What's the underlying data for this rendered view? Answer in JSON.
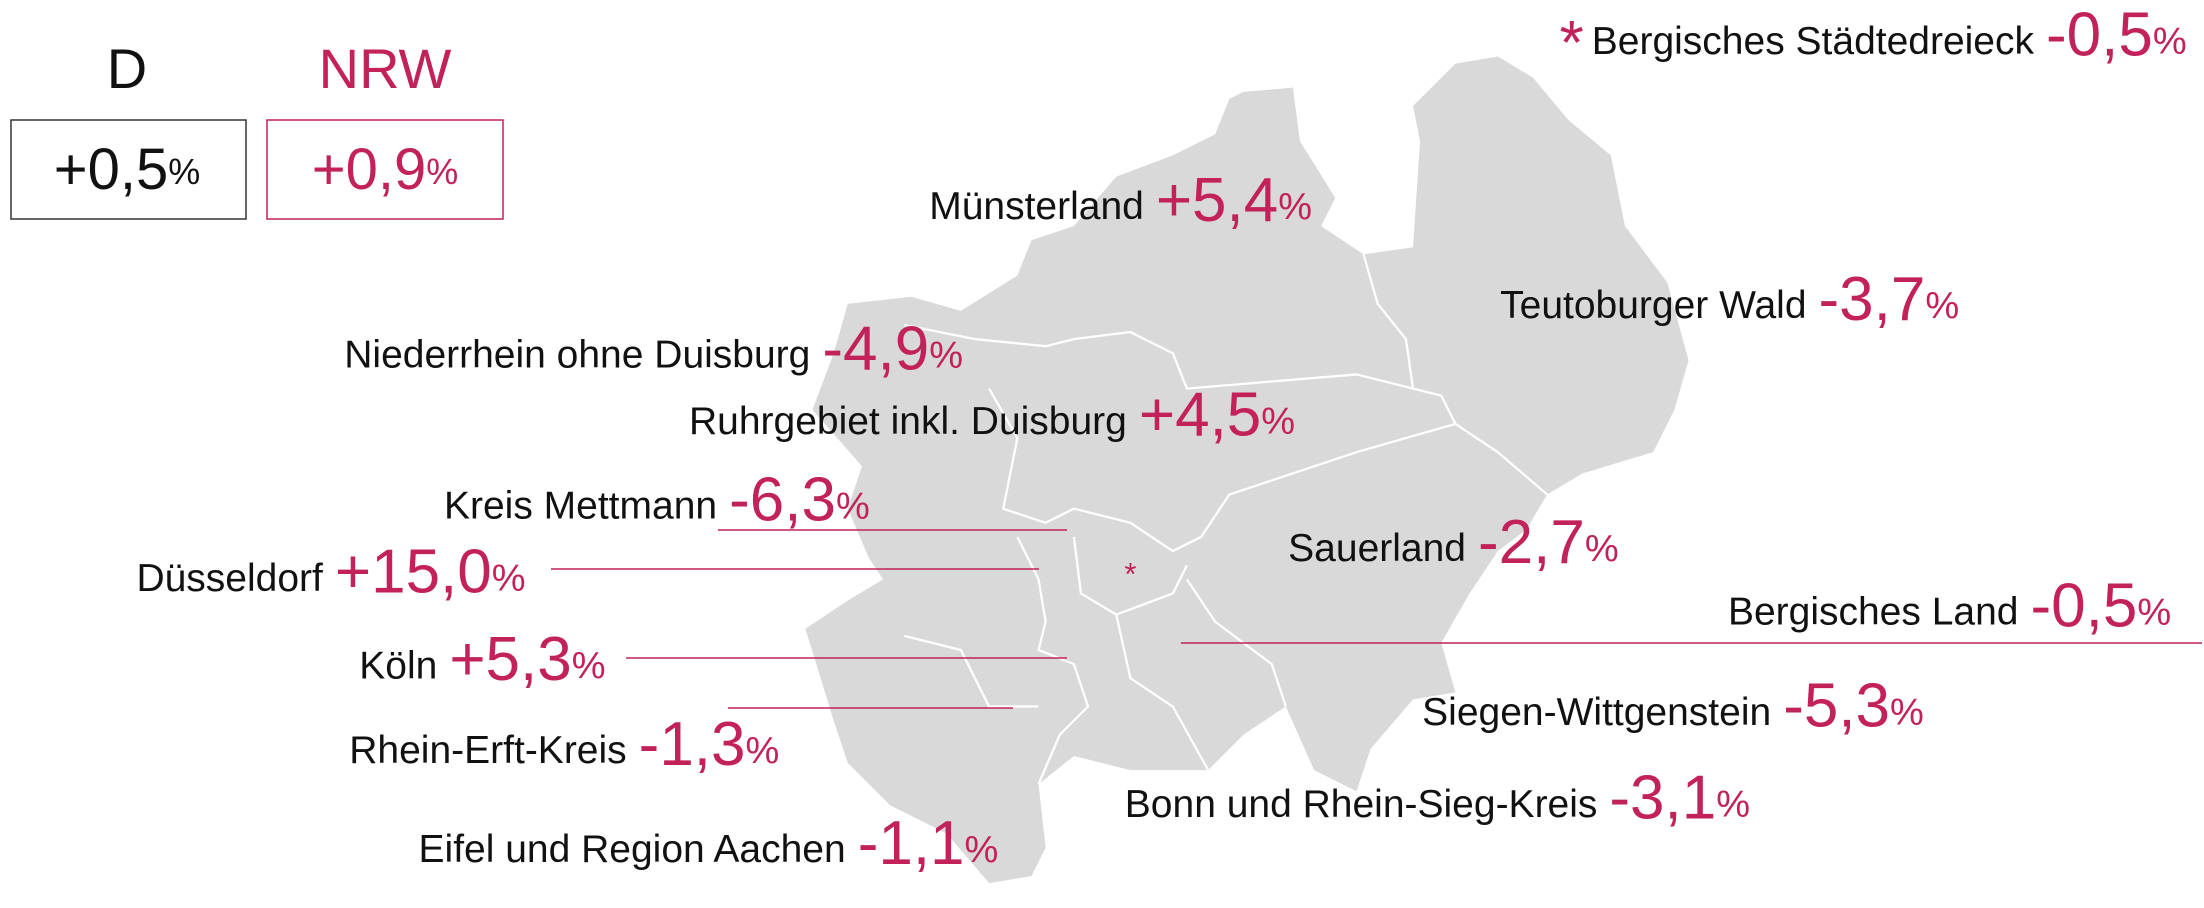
{
  "header": {
    "germany": {
      "label": "D",
      "value": "+0,5",
      "unit": "%"
    },
    "nrw": {
      "label": "NRW",
      "value": "+0,9",
      "unit": "%"
    }
  },
  "footnote_marker": "*",
  "regions": [
    {
      "name": "Bergisches Städtedreieck",
      "value": "-0,5",
      "unit": "%"
    },
    {
      "name": "Münsterland",
      "value": "+5,4",
      "unit": "%"
    },
    {
      "name": "Teutoburger Wald",
      "value": "-3,7",
      "unit": "%"
    },
    {
      "name": "Niederrhein ohne Duisburg",
      "value": "-4,9",
      "unit": "%"
    },
    {
      "name": "Ruhrgebiet inkl. Duisburg",
      "value": "+4,5",
      "unit": "%"
    },
    {
      "name": "Kreis Mettmann",
      "value": "-6,3",
      "unit": "%"
    },
    {
      "name": "Düsseldorf",
      "value": "+15,0",
      "unit": "%"
    },
    {
      "name": "Sauerland",
      "value": "-2,7",
      "unit": "%"
    },
    {
      "name": "Bergisches Land",
      "value": "-0,5",
      "unit": "%"
    },
    {
      "name": "Köln",
      "value": "+5,3",
      "unit": "%"
    },
    {
      "name": "Siegen-Wittgenstein",
      "value": "-5,3",
      "unit": "%"
    },
    {
      "name": "Rhein-Erft-Kreis",
      "value": "-1,3",
      "unit": "%"
    },
    {
      "name": "Bonn und Rhein-Sieg-Kreis",
      "value": "-3,1",
      "unit": "%"
    },
    {
      "name": "Eifel und Region Aachen",
      "value": "-1,1",
      "unit": "%"
    }
  ]
}
